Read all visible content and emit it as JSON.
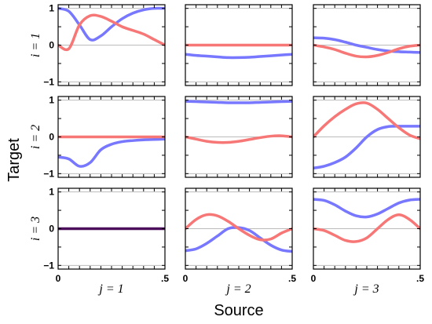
{
  "chart_data": {
    "type": "line",
    "xlabel": "Source",
    "ylabel": "Target",
    "xlim": [
      0,
      0.5
    ],
    "ylim": [
      -1.1,
      1.1
    ],
    "x_tick_labels": [
      "0",
      ".5"
    ],
    "y_tick_labels": [
      "1",
      "0",
      "−1"
    ],
    "grid": "horizontal reference lines at y = -1, 0, 1",
    "row_labels": [
      "i = 1",
      "i = 2",
      "i = 3"
    ],
    "col_labels": [
      "j = 1",
      "j = 2",
      "j = 3"
    ],
    "colors": {
      "blue": "#7777ff",
      "red": "#f77777",
      "overlap": "#4b0f5c",
      "reference": "#bbbbbb"
    },
    "x": [
      0,
      0.05,
      0.1,
      0.15,
      0.2,
      0.25,
      0.3,
      0.35,
      0.4,
      0.45,
      0.5
    ],
    "panels": [
      {
        "row": 1,
        "col": 1,
        "series": [
          {
            "color": "blue",
            "values": [
              1.0,
              0.92,
              0.55,
              0.15,
              0.25,
              0.5,
              0.72,
              0.87,
              0.96,
              1.0,
              1.0
            ]
          },
          {
            "color": "red",
            "values": [
              0.0,
              -0.1,
              0.55,
              0.8,
              0.78,
              0.65,
              0.5,
              0.4,
              0.3,
              0.15,
              0.0
            ]
          }
        ]
      },
      {
        "row": 1,
        "col": 2,
        "series": [
          {
            "color": "blue",
            "values": [
              -0.25,
              -0.28,
              -0.3,
              -0.32,
              -0.34,
              -0.34,
              -0.33,
              -0.31,
              -0.29,
              -0.27,
              -0.25
            ]
          },
          {
            "color": "red",
            "values": [
              0.0,
              0.0,
              0.0,
              0.0,
              0.0,
              0.0,
              0.0,
              0.0,
              0.0,
              0.0,
              0.0
            ]
          }
        ]
      },
      {
        "row": 1,
        "col": 3,
        "series": [
          {
            "color": "blue",
            "values": [
              0.2,
              0.19,
              0.15,
              0.08,
              0.0,
              -0.06,
              -0.12,
              -0.16,
              -0.18,
              -0.19,
              -0.2
            ]
          },
          {
            "color": "red",
            "values": [
              0.0,
              -0.05,
              -0.12,
              -0.22,
              -0.3,
              -0.32,
              -0.28,
              -0.2,
              -0.1,
              -0.03,
              0.0
            ]
          }
        ]
      },
      {
        "row": 2,
        "col": 1,
        "series": [
          {
            "color": "blue",
            "values": [
              -0.55,
              -0.6,
              -0.8,
              -0.7,
              -0.35,
              -0.2,
              -0.13,
              -0.1,
              -0.08,
              -0.07,
              -0.06
            ]
          },
          {
            "color": "red",
            "values": [
              0.0,
              0.0,
              0.0,
              0.0,
              0.0,
              0.0,
              0.0,
              0.0,
              0.0,
              0.0,
              0.0
            ]
          }
        ]
      },
      {
        "row": 2,
        "col": 2,
        "series": [
          {
            "color": "blue",
            "values": [
              0.97,
              0.96,
              0.95,
              0.94,
              0.93,
              0.93,
              0.93,
              0.94,
              0.95,
              0.96,
              0.97
            ]
          },
          {
            "color": "red",
            "values": [
              0.0,
              -0.06,
              -0.12,
              -0.15,
              -0.15,
              -0.12,
              -0.07,
              -0.02,
              0.02,
              0.03,
              0.0
            ]
          }
        ]
      },
      {
        "row": 2,
        "col": 3,
        "series": [
          {
            "color": "blue",
            "values": [
              -0.85,
              -0.8,
              -0.7,
              -0.55,
              -0.3,
              0.0,
              0.2,
              0.28,
              0.29,
              0.29,
              0.29
            ]
          },
          {
            "color": "red",
            "values": [
              0.0,
              0.3,
              0.55,
              0.75,
              0.9,
              0.92,
              0.75,
              0.5,
              0.25,
              0.05,
              -0.05
            ]
          }
        ]
      },
      {
        "row": 3,
        "col": 1,
        "series": [
          {
            "color": "overlap",
            "values": [
              0.0,
              0.0,
              0.0,
              0.0,
              0.0,
              0.0,
              0.0,
              0.0,
              0.0,
              0.0,
              0.0
            ]
          }
        ]
      },
      {
        "row": 3,
        "col": 2,
        "series": [
          {
            "color": "blue",
            "values": [
              -0.6,
              -0.55,
              -0.4,
              -0.2,
              0.0,
              0.03,
              -0.05,
              -0.25,
              -0.45,
              -0.58,
              -0.62
            ]
          },
          {
            "color": "red",
            "values": [
              0.0,
              0.25,
              0.38,
              0.35,
              0.2,
              0.0,
              -0.18,
              -0.3,
              -0.28,
              -0.12,
              0.0
            ]
          }
        ]
      },
      {
        "row": 3,
        "col": 3,
        "series": [
          {
            "color": "blue",
            "values": [
              0.8,
              0.77,
              0.65,
              0.48,
              0.35,
              0.32,
              0.4,
              0.55,
              0.7,
              0.78,
              0.8
            ]
          },
          {
            "color": "red",
            "values": [
              0.0,
              -0.05,
              -0.18,
              -0.32,
              -0.35,
              -0.25,
              0.0,
              0.25,
              0.38,
              0.25,
              0.0
            ]
          }
        ]
      }
    ]
  }
}
